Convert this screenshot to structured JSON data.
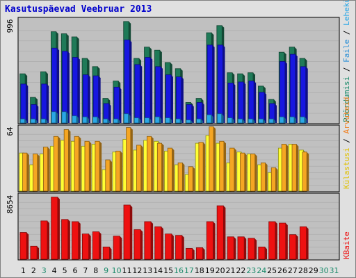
{
  "title": "Kasutuspäevad Veebruar 2013",
  "colors": {
    "visits": "#1f7a58",
    "pages": "#1717e0",
    "files": "#2aa7e6",
    "hits": "#ffff33",
    "hosts": "#f5a623",
    "kbytes": "#ee1111",
    "day_weekday": "#000000",
    "day_weekend": "#1a8a6a"
  },
  "legend": {
    "top": [
      {
        "label": "Pöördumisi",
        "color": "#1a8a6a"
      },
      {
        "label": " / ",
        "color": "#000000"
      },
      {
        "label": "Faile",
        "color": "#2a8fd6"
      },
      {
        "label": " / ",
        "color": "#000000"
      },
      {
        "label": "Lehekülgi",
        "color": "#2aa7e6"
      }
    ],
    "middle": [
      {
        "label": "Külastusi",
        "color": "#e0c000"
      },
      {
        "label": " / ",
        "color": "#000000"
      },
      {
        "label": "Arvuteid",
        "color": "#f08020"
      }
    ],
    "bottom": [
      {
        "label": "KBaite",
        "color": "#ee1111"
      }
    ]
  },
  "chart_data": {
    "type": "bar",
    "categories": [
      "1",
      "2",
      "3",
      "4",
      "5",
      "6",
      "7",
      "8",
      "9",
      "10",
      "11",
      "12",
      "13",
      "14",
      "15",
      "16",
      "17",
      "18",
      "19",
      "20",
      "21",
      "22",
      "23",
      "24",
      "25",
      "26",
      "27",
      "28",
      "29",
      "30",
      "31"
    ],
    "weekend": [
      false,
      false,
      true,
      false,
      false,
      false,
      false,
      false,
      true,
      true,
      false,
      false,
      false,
      false,
      false,
      true,
      true,
      false,
      false,
      false,
      false,
      false,
      true,
      true,
      false,
      false,
      false,
      false,
      false,
      true,
      true
    ],
    "panels": [
      {
        "id": "top",
        "ymax_label": "996",
        "ymax": 996,
        "series": [
          {
            "name": "Pöördumisi",
            "values": [
              480,
              250,
              500,
              890,
              870,
              840,
              630,
              550,
              240,
              410,
              990,
              630,
              740,
              710,
              590,
              530,
              200,
              240,
              880,
              950,
              490,
              480,
              490,
              360,
              230,
              690,
              740,
              630,
              0,
              0,
              0
            ]
          },
          {
            "name": "Faile",
            "values": [
              380,
              180,
              380,
              730,
              700,
              640,
              470,
              460,
              190,
              350,
              810,
              570,
              640,
              550,
              470,
              450,
              180,
              200,
              760,
              760,
              390,
              400,
              410,
              300,
              190,
              600,
              670,
              550,
              0,
              0,
              0
            ]
          },
          {
            "name": "Lehekülgi",
            "values": [
              40,
              40,
              40,
              110,
              110,
              70,
              60,
              60,
              40,
              40,
              90,
              50,
              50,
              60,
              50,
              40,
              30,
              40,
              80,
              90,
              50,
              40,
              40,
              40,
              40,
              60,
              60,
              60,
              0,
              0,
              0
            ]
          }
        ]
      },
      {
        "id": "middle",
        "ymax_label": "64",
        "ymax": 64,
        "series": [
          {
            "name": "Külastusi",
            "values": [
              39,
              27,
              38,
              46,
              52,
              51,
              46,
              48,
              22,
              40,
              53,
              42,
              52,
              51,
              41,
              27,
              17,
              49,
              57,
              49,
              29,
              40,
              38,
              27,
              19,
              44,
              48,
              42,
              0,
              0,
              0
            ]
          },
          {
            "name": "Arvuteid",
            "values": [
              39,
              38,
              45,
              56,
              63,
              56,
              51,
              51,
              32,
              41,
              65,
              47,
              56,
              49,
              44,
              29,
              25,
              50,
              66,
              51,
              44,
              39,
              38,
              29,
              24,
              48,
              48,
              40,
              0,
              0,
              0
            ]
          }
        ]
      },
      {
        "id": "bottom",
        "ymax_label": "8654",
        "ymax": 8654,
        "series": [
          {
            "name": "KBaite",
            "values": [
              3700,
              1800,
              5300,
              8600,
              5500,
              5200,
              3500,
              3800,
              1700,
              3200,
              7500,
              4100,
              5200,
              4500,
              3500,
              3300,
              1500,
              1600,
              5200,
              7400,
              3100,
              3100,
              2900,
              1700,
              5200,
              5000,
              3400,
              4500,
              0,
              0,
              0
            ]
          }
        ]
      }
    ]
  }
}
